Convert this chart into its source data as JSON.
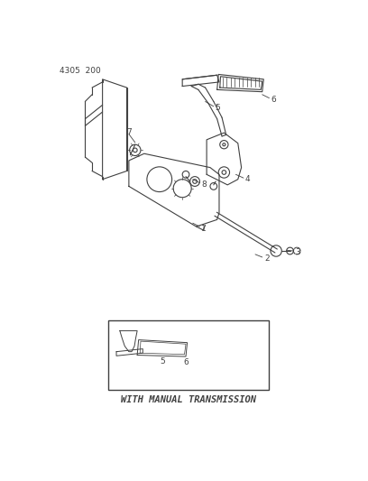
{
  "title": "4305  200",
  "background_color": "#ffffff",
  "line_color": "#404040",
  "figsize": [
    4.08,
    5.33
  ],
  "dpi": 100,
  "inset_label": "WITH MANUAL TRANSMISSION",
  "header": "4305  200"
}
